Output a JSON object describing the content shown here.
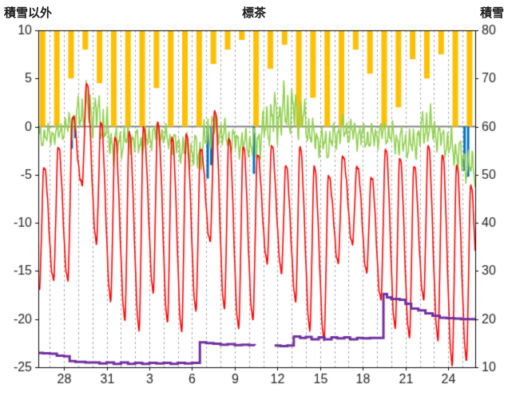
{
  "chart_data": {
    "type": "line",
    "title": "標茶",
    "left_axis": {
      "label": "積雪以外",
      "min": -25,
      "max": 10,
      "ticks": [
        10,
        5,
        0,
        -5,
        -10,
        -15,
        -20,
        -25
      ]
    },
    "right_axis": {
      "label": "積雪",
      "min": 10,
      "max": 80,
      "ticks": [
        80,
        70,
        60,
        50,
        40,
        30,
        20,
        10
      ]
    },
    "x_axis": {
      "start": 26.2,
      "end": 56.9,
      "first_day": 26,
      "labels": [
        {
          "day": 28,
          "text": "28"
        },
        {
          "day": 31,
          "text": "31"
        },
        {
          "day": 34,
          "text": "3"
        },
        {
          "day": 37,
          "text": "6"
        },
        {
          "day": 40,
          "text": "9"
        },
        {
          "day": 43,
          "text": "12"
        },
        {
          "day": 46,
          "text": "15"
        },
        {
          "day": 49,
          "text": "18"
        },
        {
          "day": 52,
          "text": "21"
        },
        {
          "day": 55,
          "text": "24"
        }
      ]
    },
    "grid": {
      "vertical_dashed_every_day": true,
      "gridline_color": "#a8a8a8",
      "zero_line_color": "#808080",
      "axis_color": "#000000",
      "text_color": "#262626"
    },
    "series": {
      "sunshine_bars": {
        "name": "sunshine",
        "color": "#FFC000",
        "max_value": 10,
        "daily": [
          10,
          10,
          5,
          2,
          5.5,
          10,
          10,
          10,
          6,
          10,
          10,
          10,
          3.5,
          2,
          1,
          10,
          4,
          1.5,
          10,
          7,
          10,
          10,
          2,
          4.5,
          10,
          8,
          3,
          5,
          2.5,
          10,
          10
        ]
      },
      "precip_bars": {
        "name": "precipitation",
        "color": "#0070C0",
        "points": [
          [
            28.55,
            -2.3
          ],
          [
            28.8,
            -1.2
          ],
          [
            38.1,
            -5.4
          ],
          [
            38.35,
            -4.0
          ],
          [
            41.35,
            -4.9
          ],
          [
            56.15,
            -4.6
          ],
          [
            56.4,
            -5.2
          ]
        ]
      },
      "green_line": {
        "name": "secondary-temperature",
        "color": "#92D050",
        "daily_minmax": [
          [
            -2.5,
            0.5
          ],
          [
            -2,
            0.5
          ],
          [
            -1.5,
            2
          ],
          [
            -1,
            5
          ],
          [
            -2,
            4
          ],
          [
            -4.5,
            0.5
          ],
          [
            -3,
            0.5
          ],
          [
            -3.5,
            0
          ],
          [
            -2,
            1
          ],
          [
            -3,
            0
          ],
          [
            -4.5,
            -0.5
          ],
          [
            -5.5,
            0
          ],
          [
            -2,
            2.5
          ],
          [
            -3,
            0.5
          ],
          [
            -3.5,
            0
          ],
          [
            -4,
            0.5
          ],
          [
            -2.5,
            4
          ],
          [
            -2,
            5
          ],
          [
            -1.5,
            4.5
          ],
          [
            -3,
            1
          ],
          [
            -4,
            0
          ],
          [
            -2,
            1.5
          ],
          [
            -2.5,
            1
          ],
          [
            -3,
            0.5
          ],
          [
            -2,
            1
          ],
          [
            -3.5,
            0.5
          ],
          [
            -4,
            0
          ],
          [
            -2.5,
            3
          ],
          [
            -3,
            0.5
          ],
          [
            -5,
            0
          ],
          [
            -6.5,
            -2
          ]
        ]
      },
      "red_line": {
        "name": "air-temperature",
        "color": "#FF0000",
        "daily_minmax": [
          [
            -17,
            -4
          ],
          [
            -16,
            -2
          ],
          [
            -16,
            1
          ],
          [
            -6,
            4.5
          ],
          [
            -12,
            0.5
          ],
          [
            -18,
            -1
          ],
          [
            -20,
            -0.5
          ],
          [
            -21,
            0
          ],
          [
            -17,
            0.5
          ],
          [
            -20,
            -1
          ],
          [
            -21,
            -0.5
          ],
          [
            -19,
            -2
          ],
          [
            -12,
            2
          ],
          [
            -19,
            -1
          ],
          [
            -21,
            -2
          ],
          [
            -20,
            -3
          ],
          [
            -14,
            -2
          ],
          [
            -15,
            -4
          ],
          [
            -18,
            -2
          ],
          [
            -21,
            -4
          ],
          [
            -22,
            -5
          ],
          [
            -14,
            -3
          ],
          [
            -12,
            -4
          ],
          [
            -15,
            -5
          ],
          [
            -18,
            -2
          ],
          [
            -21,
            -3
          ],
          [
            -22,
            -4
          ],
          [
            -18,
            -2
          ],
          [
            -22,
            -3
          ],
          [
            -24.5,
            -4
          ],
          [
            -24,
            -6
          ]
        ]
      },
      "snow_step": {
        "name": "snow-depth",
        "color": "#7030A0",
        "points": [
          [
            26.0,
            13
          ],
          [
            26.5,
            12.9
          ],
          [
            27,
            12.8
          ],
          [
            27.5,
            12.4
          ],
          [
            28,
            12.3
          ],
          [
            28.4,
            11.3
          ],
          [
            28.8,
            11.1
          ],
          [
            29.5,
            11
          ],
          [
            30,
            11
          ],
          [
            30.5,
            10.8
          ],
          [
            31,
            11
          ],
          [
            31.5,
            10.7
          ],
          [
            32,
            11
          ],
          [
            32.5,
            10.7
          ],
          [
            33,
            10.9
          ],
          [
            33.5,
            10.7
          ],
          [
            34,
            10.9
          ],
          [
            34.5,
            10.8
          ],
          [
            35,
            10.9
          ],
          [
            35.5,
            10.7
          ],
          [
            36,
            10.9
          ],
          [
            36.5,
            10.8
          ],
          [
            37,
            10.9
          ],
          [
            37.55,
            15.2
          ],
          [
            38,
            15
          ],
          [
            38.5,
            14.9
          ],
          [
            39,
            14.7
          ],
          [
            39.5,
            14.8
          ],
          [
            40,
            14.6
          ],
          [
            40.5,
            14.7
          ],
          [
            41,
            14.6
          ],
          [
            41.4,
            14.5
          ],
          [
            41.7,
            null
          ],
          [
            42.8,
            14.5
          ],
          [
            43.2,
            14.4
          ],
          [
            43.7,
            14.5
          ],
          [
            44.15,
            16.4
          ],
          [
            44.6,
            16.1
          ],
          [
            45,
            16.3
          ],
          [
            45.4,
            15.8
          ],
          [
            45.9,
            16.2
          ],
          [
            46.3,
            15.8
          ],
          [
            46.8,
            16.2
          ],
          [
            47.2,
            16
          ],
          [
            47.7,
            16.2
          ],
          [
            48.1,
            15.8
          ],
          [
            48.6,
            16.1
          ],
          [
            49,
            16
          ],
          [
            49.5,
            16.1
          ],
          [
            50,
            16.1
          ],
          [
            50.45,
            25.2
          ],
          [
            50.7,
            24.5
          ],
          [
            51,
            24.2
          ],
          [
            51.6,
            24
          ],
          [
            52,
            23.2
          ],
          [
            52.4,
            22.2
          ],
          [
            52.9,
            21.8
          ],
          [
            53.4,
            21.2
          ],
          [
            53.9,
            20.7
          ],
          [
            54.4,
            20.3
          ],
          [
            54.9,
            20.2
          ],
          [
            55.4,
            20.1
          ],
          [
            55.9,
            20
          ],
          [
            56.9,
            20
          ]
        ]
      }
    }
  }
}
